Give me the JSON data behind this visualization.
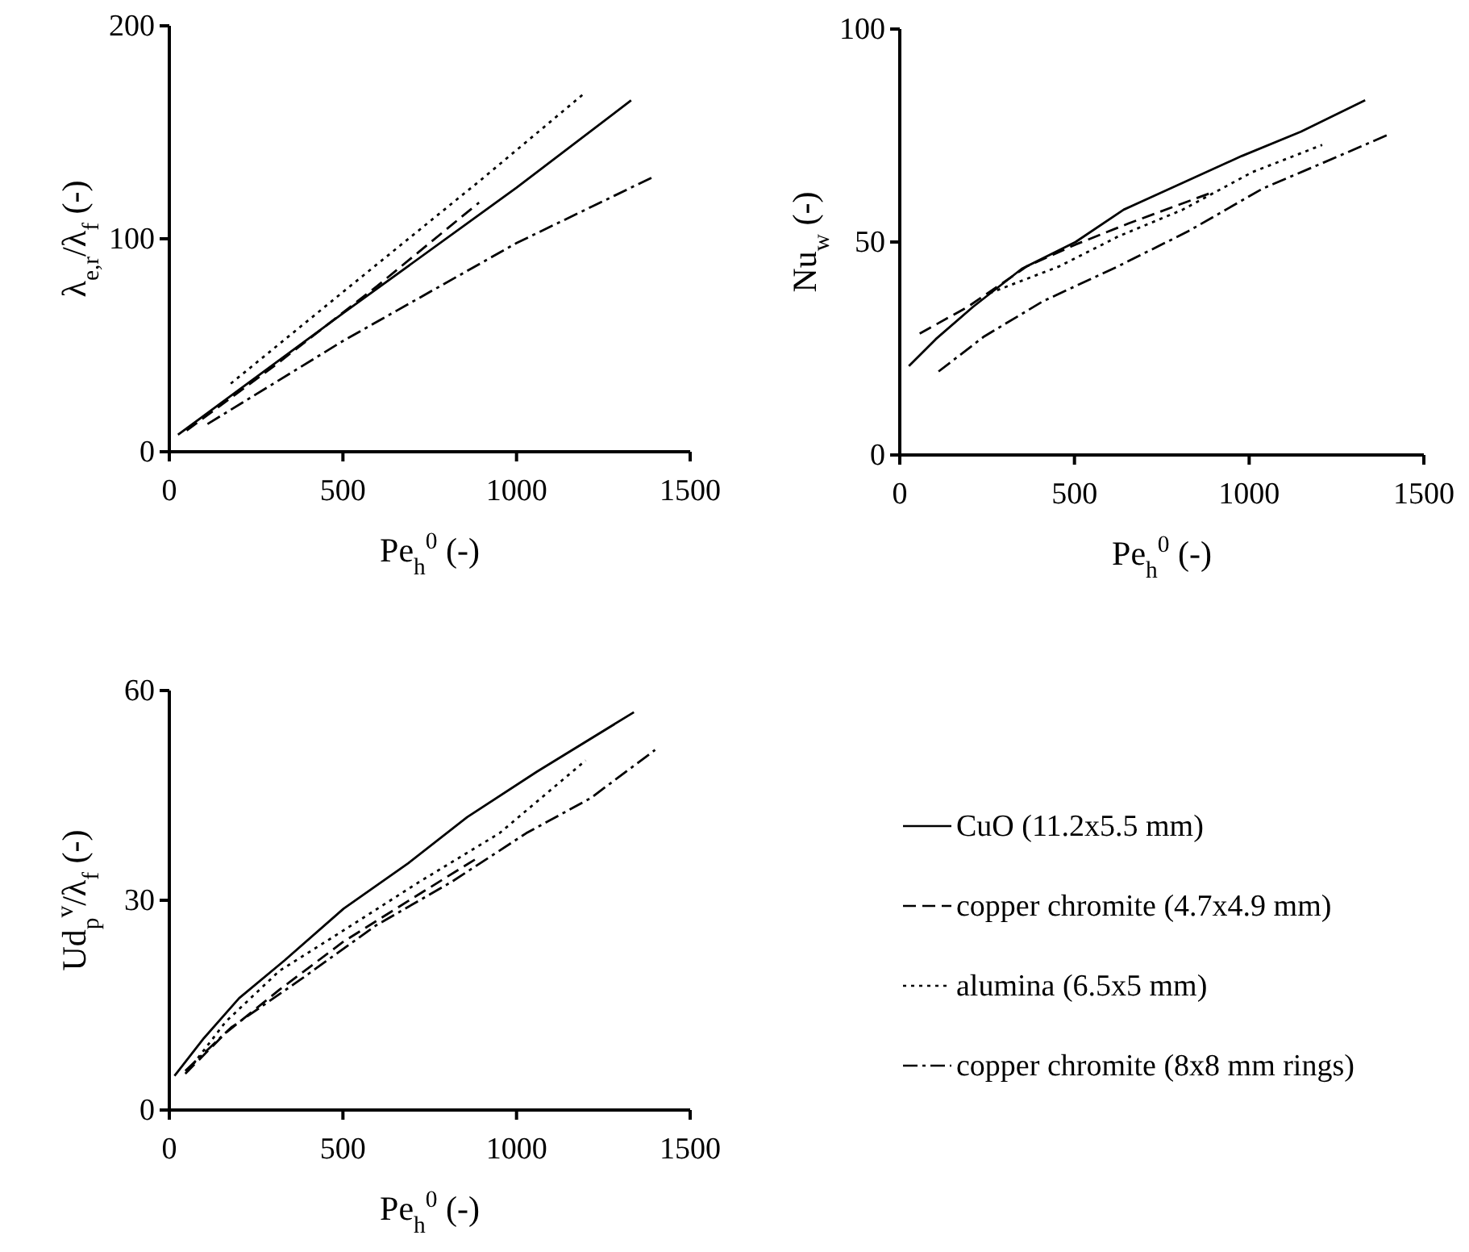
{
  "chart_data": [
    {
      "type": "line",
      "xlabel": "Pe$_{h}$$^{0}$ (-)",
      "ylabel": "λ$_{e,r}$/λ$_{f}$ (-)",
      "xlim": [
        0,
        1500
      ],
      "xticks": [
        0,
        500,
        1000,
        1500
      ],
      "ylim": [
        0,
        200
      ],
      "yticks": [
        0,
        100,
        200
      ],
      "grid": false,
      "legend": false,
      "series": [
        {
          "color": "#000000",
          "line_style": "solid",
          "x": [
            25,
            500,
            1000,
            1330
          ],
          "values": [
            8,
            65,
            124,
            165
          ]
        },
        {
          "color": "#000000",
          "line_style": "dashed",
          "x": [
            50,
            300,
            600,
            892
          ],
          "values": [
            10,
            40,
            78,
            117
          ]
        },
        {
          "color": "#000000",
          "line_style": "dotted",
          "x": [
            177,
            500,
            900,
            1193
          ],
          "values": [
            32,
            75,
            128,
            168
          ]
        },
        {
          "color": "#000000",
          "line_style": "dashdot",
          "x": [
            110,
            500,
            1000,
            1393
          ],
          "values": [
            13,
            52,
            98,
            129
          ]
        }
      ]
    },
    {
      "type": "line",
      "xlabel": "Pe$_{h}$$^{0}$ (-)",
      "ylabel": "Nu$_{w}$ (-)",
      "xlim": [
        0,
        1500
      ],
      "xticks": [
        0,
        500,
        1000,
        1500
      ],
      "ylim": [
        0,
        100
      ],
      "yticks": [
        0,
        50,
        100
      ],
      "grid": false,
      "legend": false,
      "series": [
        {
          "color": "#000000",
          "line_style": "solid",
          "x": [
            26,
            103,
            210,
            349,
            503,
            641,
            794,
            979,
            1148,
            1332
          ],
          "values": [
            20.9,
            27.2,
            34.8,
            43.7,
            50,
            57.6,
            63.3,
            70.2,
            75.9,
            83.3
          ]
        },
        {
          "color": "#000000",
          "line_style": "dashed",
          "x": [
            57,
            195,
            364,
            503,
            656,
            794,
            886
          ],
          "values": [
            28.5,
            34.8,
            44.3,
            49.4,
            54.4,
            58.6,
            61.4
          ]
        },
        {
          "color": "#000000",
          "line_style": "dotted",
          "x": [
            257,
            457,
            625,
            810,
            1009,
            1209
          ],
          "values": [
            38,
            44.3,
            51.3,
            57.6,
            66.4,
            72.8
          ]
        },
        {
          "color": "#000000",
          "line_style": "dashdot",
          "x": [
            111,
            241,
            410,
            625,
            825,
            1040,
            1240,
            1401
          ],
          "values": [
            19.6,
            27.8,
            36.1,
            44.3,
            52.5,
            62.6,
            69.6,
            75.3
          ]
        }
      ]
    },
    {
      "type": "line",
      "xlabel": "Pe$_{h}$$^{0}$  (-)",
      "ylabel": "Ud$_{p}$$^{v}$/λ$_{f}$  (-)",
      "xlim": [
        0,
        1500
      ],
      "xticks": [
        0,
        500,
        1000,
        1500
      ],
      "ylim": [
        0,
        60
      ],
      "yticks": [
        0,
        30,
        60
      ],
      "grid": false,
      "legend": "right",
      "series": [
        {
          "name": "CuO (11.2x5.5 mm)",
          "color": "#000000",
          "line_style": "solid",
          "x": [
            15,
            100,
            201,
            332,
            502,
            688,
            858,
            1059,
            1338
          ],
          "values": [
            4.9,
            10.3,
            16,
            21.4,
            28.8,
            35.3,
            41.9,
            48.4,
            56.9
          ]
        },
        {
          "name": "copper chromite (4.7x4.9 mm)",
          "color": "#000000",
          "line_style": "dashed",
          "x": [
            46,
            162,
            317,
            502,
            688,
            889
          ],
          "values": [
            5.2,
            11,
            17.2,
            24.1,
            29.9,
            36.1
          ]
        },
        {
          "name": "alumina (6.5x5 mm)",
          "color": "#000000",
          "line_style": "dotted",
          "x": [
            54,
            162,
            317,
            502,
            719,
            951,
            1199
          ],
          "values": [
            5.6,
            12.6,
            19.9,
            25.7,
            32.6,
            39.6,
            50
          ]
        },
        {
          "name": "copper chromite (8x8 mm rings)",
          "color": "#000000",
          "line_style": "dashdot",
          "x": [
            46,
            178,
            379,
            595,
            812,
            1028,
            1213,
            1399
          ],
          "values": [
            5.6,
            11.8,
            18.7,
            26.4,
            32.6,
            39.6,
            44.6,
            51.5
          ]
        }
      ]
    }
  ]
}
